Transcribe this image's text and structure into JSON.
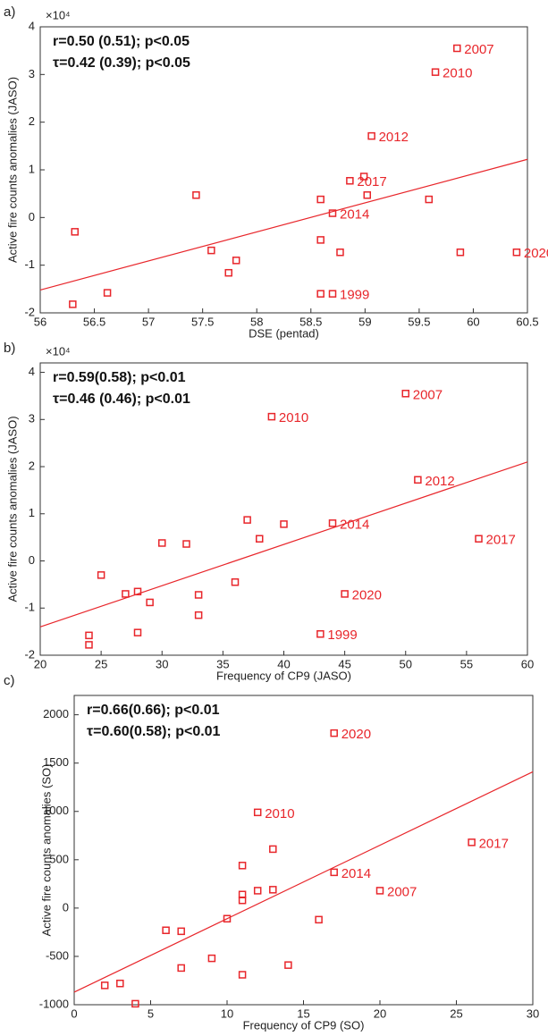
{
  "chart_data": [
    {
      "type": "scatter",
      "panel": "a)",
      "multiplier": "×10⁴",
      "stats": [
        "r=0.50 (0.51); p<0.05",
        "τ=0.42 (0.39); p<0.05"
      ],
      "xlabel": "DSE (pentad)",
      "ylabel": "Active fire counts anomalies (JASO)",
      "xlim": [
        56,
        60.5
      ],
      "xticks": [
        56,
        56.5,
        57,
        57.5,
        58,
        58.5,
        59,
        59.5,
        60,
        60.5
      ],
      "ylim": [
        -2,
        4
      ],
      "yticks": [
        -2,
        -1,
        0,
        1,
        2,
        3,
        4
      ],
      "color": "#e8262b",
      "x": [
        59.85,
        59.65,
        59.06,
        58.99,
        58.86,
        59.02,
        58.7,
        58.59,
        57.44,
        56.32,
        59.59,
        58.59,
        58.77,
        59.88,
        60.4,
        57.58,
        57.81,
        57.74,
        56.62,
        58.59,
        58.7,
        56.3
      ],
      "values": [
        3.55,
        3.05,
        1.71,
        0.86,
        0.77,
        0.47,
        0.09,
        0.38,
        0.47,
        -0.3,
        0.38,
        -0.47,
        -0.73,
        -0.73,
        -0.73,
        -0.69,
        -0.9,
        -1.16,
        -1.58,
        -1.6,
        -1.6,
        -1.82
      ],
      "point_labels": [
        "2007",
        "2010",
        "2012",
        null,
        "2017",
        null,
        "2014",
        null,
        null,
        null,
        null,
        null,
        null,
        null,
        "2020",
        null,
        null,
        null,
        null,
        null,
        "1999",
        null
      ],
      "fit": {
        "x": [
          56,
          60.5
        ],
        "values": [
          -1.52,
          1.22
        ]
      }
    },
    {
      "type": "scatter",
      "panel": "b)",
      "multiplier": "×10⁴",
      "stats": [
        "r=0.59(0.58); p<0.01",
        "τ=0.46 (0.46); p<0.01"
      ],
      "xlabel": "Frequency of CP9 (JASO)",
      "ylabel": "Active fire counts anomalies (JASO)",
      "xlim": [
        20,
        60
      ],
      "xticks": [
        20,
        25,
        30,
        35,
        40,
        45,
        50,
        55,
        60
      ],
      "ylim": [
        -2,
        4.2
      ],
      "yticks": [
        -2,
        -1,
        0,
        1,
        2,
        3,
        4
      ],
      "color": "#e8262b",
      "x": [
        50,
        39,
        51,
        56,
        44,
        45,
        43,
        37,
        40,
        38,
        30,
        32,
        36,
        25,
        27,
        28,
        33,
        29,
        33,
        28,
        24,
        24
      ],
      "values": [
        3.55,
        3.06,
        1.72,
        0.47,
        0.8,
        -0.7,
        -1.55,
        0.87,
        0.78,
        0.47,
        0.38,
        0.36,
        -0.45,
        -0.3,
        -0.7,
        -0.65,
        -0.72,
        -0.88,
        -1.15,
        -1.52,
        -1.58,
        -1.78
      ],
      "point_labels": [
        "2007",
        "2010",
        "2012",
        "2017",
        "2014",
        "2020",
        "1999",
        null,
        null,
        null,
        null,
        null,
        null,
        null,
        null,
        null,
        null,
        null,
        null,
        null,
        null,
        null
      ],
      "fit": {
        "x": [
          20,
          60
        ],
        "values": [
          -1.4,
          2.1
        ]
      }
    },
    {
      "type": "scatter",
      "panel": "c)",
      "stats": [
        "r=0.66(0.66); p<0.01",
        "τ=0.60(0.58); p<0.01"
      ],
      "xlabel": "Frequency of CP9 (SO)",
      "ylabel": "Active fire counts anomalies (SO)",
      "xlim": [
        0,
        30
      ],
      "xticks": [
        0,
        5,
        10,
        15,
        20,
        25,
        30
      ],
      "ylim": [
        -1000,
        2200
      ],
      "yticks": [
        -1000,
        -500,
        0,
        500,
        1000,
        1500,
        2000
      ],
      "color": "#e8262b",
      "x": [
        17,
        12,
        17,
        20,
        26,
        13,
        11,
        11,
        11,
        12,
        13,
        16,
        10,
        6,
        7,
        7,
        9,
        11,
        14,
        2,
        3,
        4
      ],
      "values": [
        1810,
        990,
        370,
        180,
        680,
        610,
        440,
        140,
        80,
        180,
        190,
        -120,
        -110,
        -230,
        -240,
        -620,
        -520,
        -690,
        -590,
        -800,
        -780,
        -990
      ],
      "point_labels": [
        "2020",
        "2010",
        "2014",
        "2007",
        "2017",
        null,
        null,
        null,
        null,
        null,
        null,
        null,
        null,
        null,
        null,
        null,
        null,
        null,
        null,
        null,
        null,
        null
      ],
      "fit": {
        "x": [
          0,
          30
        ],
        "values": [
          -870,
          1410
        ]
      }
    }
  ]
}
